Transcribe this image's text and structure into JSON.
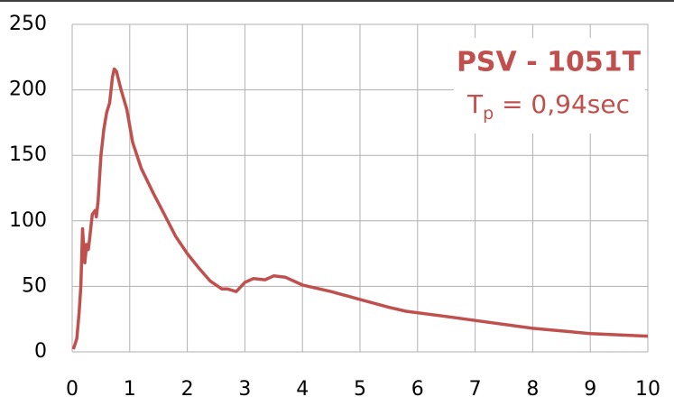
{
  "chart_data": {
    "type": "line",
    "title": "PSV - 1051T",
    "subtitle": [
      "T",
      "p",
      " = 0,94sec"
    ],
    "x": [
      0.02,
      0.08,
      0.12,
      0.15,
      0.18,
      0.2,
      0.22,
      0.25,
      0.28,
      0.3,
      0.35,
      0.4,
      0.42,
      0.45,
      0.5,
      0.55,
      0.6,
      0.65,
      0.7,
      0.73,
      0.77,
      0.85,
      0.95,
      1.05,
      1.2,
      1.4,
      1.6,
      1.8,
      2.0,
      2.2,
      2.4,
      2.6,
      2.7,
      2.85,
      3.0,
      3.15,
      3.35,
      3.5,
      3.7,
      4.0,
      4.5,
      5.0,
      5.5,
      5.8,
      6.5,
      7.0,
      8.0,
      9.0,
      10.0
    ],
    "series": [
      {
        "color": "#c0504d",
        "values": [
          2,
          10,
          30,
          50,
          94,
          80,
          68,
          82,
          78,
          85,
          105,
          108,
          103,
          115,
          150,
          170,
          183,
          190,
          210,
          216,
          214,
          200,
          185,
          160,
          140,
          122,
          105,
          88,
          75,
          64,
          54,
          48,
          48,
          46,
          53,
          56,
          55,
          58,
          57,
          51,
          46,
          40,
          34,
          31,
          27,
          24,
          18,
          14,
          12
        ]
      }
    ],
    "xlim": [
      0,
      10
    ],
    "xticks": [
      0,
      1,
      2,
      3,
      4,
      5,
      6,
      7,
      8,
      9,
      10
    ],
    "ylim": [
      0,
      250
    ],
    "yticks": [
      0,
      50,
      100,
      150,
      200,
      250
    ],
    "grid": true
  }
}
